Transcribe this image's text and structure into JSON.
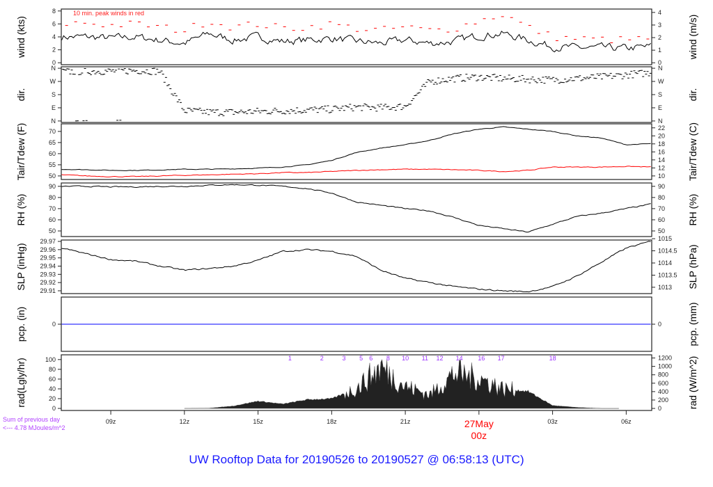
{
  "chart_data": {
    "type": "line",
    "title": "UW Rooftop Data for 20190526  to  20190527 @ 06:58:13  (UTC)",
    "x_range_hours": [
      0,
      24
    ],
    "x_hours_note": "hour 0 = 07z 26 May",
    "x_ticks": [
      {
        "h": 2,
        "label": "09z"
      },
      {
        "h": 5,
        "label": "12z"
      },
      {
        "h": 8,
        "label": "15z"
      },
      {
        "h": 11,
        "label": "18z"
      },
      {
        "h": 14,
        "label": "21z"
      },
      {
        "h": 17,
        "label": "00z"
      },
      {
        "h": 20,
        "label": "03z"
      },
      {
        "h": 23,
        "label": "06z"
      }
    ],
    "date_marker": {
      "h": 17,
      "day": "27May",
      "hour": "00z",
      "color": "#ff0000"
    },
    "panels": [
      {
        "id": "wind",
        "ylabel_left": "wind (kts)",
        "ylabel_right": "wind (m/s)",
        "ylim": [
          -0.3,
          8.3
        ],
        "left_ticks": [
          {
            "v": 0,
            "label": "0"
          },
          {
            "v": 2,
            "label": "2"
          },
          {
            "v": 4,
            "label": "4"
          },
          {
            "v": 6,
            "label": "6"
          },
          {
            "v": 8,
            "label": "8"
          }
        ],
        "right_ticks": [
          {
            "v": 0,
            "label": "0"
          },
          {
            "v": 1.944,
            "label": "1"
          },
          {
            "v": 3.888,
            "label": "2"
          },
          {
            "v": 5.832,
            "label": "3"
          },
          {
            "v": 7.776,
            "label": "4"
          }
        ],
        "annotation": "10 min. peak winds in red",
        "series": [
          {
            "name": "wind speed",
            "color": "#000000",
            "noise": 1.0,
            "values": [
              4,
              4,
              3.8,
              4,
              3.5,
              3,
              4.5,
              3.5,
              4,
              3.3,
              3.5,
              3.8,
              3.3,
              3,
              3.5,
              3,
              3.3,
              4.2,
              4.5,
              3.5,
              2.5,
              2.3,
              2.3,
              2.2,
              2.5
            ]
          },
          {
            "name": "10 min peak",
            "color": "#ff0000",
            "style": "dash",
            "values": [
              6,
              6.2,
              5.8,
              6,
              5.5,
              5,
              6.5,
              5.5,
              6,
              5.3,
              5.5,
              6,
              5.3,
              5,
              5.5,
              5,
              5.3,
              6.5,
              7.5,
              5.5,
              4,
              3.7,
              3.6,
              3.5,
              3.8
            ]
          }
        ]
      },
      {
        "id": "dir",
        "ylabel_left": "dir.",
        "ylabel_right": "dir.",
        "ylim": [
          -10,
          370
        ],
        "left_ticks": [
          {
            "v": 0,
            "label": "N"
          },
          {
            "v": 90,
            "label": "E"
          },
          {
            "v": 180,
            "label": "S"
          },
          {
            "v": 270,
            "label": "W"
          },
          {
            "v": 360,
            "label": "N"
          }
        ],
        "right_ticks": [
          {
            "v": 0,
            "label": "N"
          },
          {
            "v": 90,
            "label": "E"
          },
          {
            "v": 180,
            "label": "S"
          },
          {
            "v": 270,
            "label": "W"
          },
          {
            "v": 360,
            "label": "N"
          }
        ],
        "series": [
          {
            "name": "wind direction",
            "color": "#000000",
            "style": "points",
            "values": [
              335,
              340,
              340,
              345,
              340,
              70,
              60,
              60,
              65,
              70,
              75,
              80,
              95,
              90,
              100,
              270,
              290,
              300,
              290,
              285,
              280,
              290,
              300,
              315,
              330
            ]
          }
        ]
      },
      {
        "id": "temp",
        "ylabel_left": "Tair/Tdew (F)",
        "ylabel_right": "Tair/Tdew (C)",
        "ylim": [
          48.4,
          73.4
        ],
        "left_ticks": [
          {
            "v": 50,
            "label": "50"
          },
          {
            "v": 55,
            "label": "55"
          },
          {
            "v": 60,
            "label": "60"
          },
          {
            "v": 65,
            "label": "65"
          },
          {
            "v": 70,
            "label": "70"
          }
        ],
        "right_ticks": [
          {
            "v": 50,
            "label": "10"
          },
          {
            "v": 53.6,
            "label": "12"
          },
          {
            "v": 57.2,
            "label": "14"
          },
          {
            "v": 60.8,
            "label": "16"
          },
          {
            "v": 64.4,
            "label": "18"
          },
          {
            "v": 68,
            "label": "20"
          },
          {
            "v": 71.6,
            "label": "22"
          }
        ],
        "series": [
          {
            "name": "Tair",
            "color": "#000000",
            "noise": 0.25,
            "values": [
              53,
              52.8,
              52.5,
              52.5,
              52.7,
              53,
              53,
              53.2,
              53.5,
              54,
              55,
              57,
              60.5,
              62.5,
              64,
              66,
              69,
              71,
              72,
              71,
              70,
              68,
              67,
              64,
              64.5
            ]
          },
          {
            "name": "Tdew",
            "color": "#ff0000",
            "noise": 0.3,
            "values": [
              50.5,
              50,
              49.7,
              49.7,
              50,
              50.3,
              50.5,
              50.8,
              51,
              51.5,
              51.5,
              52,
              52.5,
              52.8,
              53,
              53,
              52.8,
              52.5,
              52,
              52.5,
              54,
              54,
              54,
              54.3,
              54
            ]
          }
        ]
      },
      {
        "id": "rh",
        "ylabel_left": "RH (%)",
        "ylabel_right": "RH (%)",
        "ylim": [
          45,
          93
        ],
        "left_ticks": [
          {
            "v": 50,
            "label": "50"
          },
          {
            "v": 60,
            "label": "60"
          },
          {
            "v": 70,
            "label": "70"
          },
          {
            "v": 80,
            "label": "80"
          },
          {
            "v": 90,
            "label": "90"
          }
        ],
        "right_ticks": [
          {
            "v": 50,
            "label": "50"
          },
          {
            "v": 60,
            "label": "60"
          },
          {
            "v": 70,
            "label": "70"
          },
          {
            "v": 80,
            "label": "80"
          },
          {
            "v": 90,
            "label": "90"
          }
        ],
        "series": [
          {
            "name": "RH",
            "color": "#000000",
            "noise": 0.8,
            "values": [
              90,
              90,
              89.5,
              89.5,
              90,
              90,
              91,
              91.5,
              91,
              90,
              88,
              84,
              76,
              73,
              70,
              68,
              62,
              55,
              52,
              49,
              56,
              63,
              66,
              70,
              74
            ]
          }
        ]
      },
      {
        "id": "slp",
        "ylabel_left": "SLP (inHg)",
        "ylabel_right": "SLP (hPa)",
        "ylim": [
          29.9066,
          29.9717
        ],
        "left_ticks": [
          {
            "v": 29.91,
            "label": "29.91"
          },
          {
            "v": 29.92,
            "label": "29.92"
          },
          {
            "v": 29.93,
            "label": "29.93"
          },
          {
            "v": 29.94,
            "label": "29.94"
          },
          {
            "v": 29.95,
            "label": "29.95"
          },
          {
            "v": 29.96,
            "label": "29.96"
          },
          {
            "v": 29.97,
            "label": "29.97"
          }
        ],
        "right_ticks": [
          {
            "v": 29.9143,
            "label": "1013"
          },
          {
            "v": 29.929,
            "label": "1013.5"
          },
          {
            "v": 29.9438,
            "label": "1014"
          },
          {
            "v": 29.9586,
            "label": "1014.5"
          },
          {
            "v": 29.9733,
            "label": "1015"
          }
        ],
        "series": [
          {
            "name": "SLP",
            "color": "#000000",
            "noise": 0.0015,
            "values": [
              29.962,
              29.955,
              29.948,
              29.946,
              29.94,
              29.935,
              29.937,
              29.94,
              29.947,
              29.958,
              29.96,
              29.958,
              29.952,
              29.935,
              29.925,
              29.92,
              29.915,
              29.912,
              29.91,
              29.909,
              29.915,
              29.928,
              29.945,
              29.962,
              29.97
            ]
          }
        ]
      },
      {
        "id": "pcp",
        "ylabel_left": "pcp. (in)",
        "ylabel_right": "pcp. (mm)",
        "ylim": [
          -1,
          1
        ],
        "left_ticks": [
          {
            "v": 0,
            "label": "0"
          }
        ],
        "right_ticks": [
          {
            "v": 0,
            "label": "0"
          }
        ],
        "series": [
          {
            "name": "precipitation",
            "color": "#0000ff",
            "values": [
              0,
              0,
              0,
              0,
              0,
              0,
              0,
              0,
              0,
              0,
              0,
              0,
              0,
              0,
              0,
              0,
              0,
              0,
              0,
              0,
              0,
              0,
              0,
              0,
              0
            ]
          }
        ]
      },
      {
        "id": "rad",
        "ylabel_left": "rad(Lgly/hr)",
        "ylabel_right": "rad (W/m^2)",
        "ylim": [
          -4.2,
          109.7
        ],
        "left_ticks": [
          {
            "v": 0,
            "label": "0"
          },
          {
            "v": 20,
            "label": "20"
          },
          {
            "v": 40,
            "label": "40"
          },
          {
            "v": 60,
            "label": "60"
          },
          {
            "v": 80,
            "label": "80"
          },
          {
            "v": 100,
            "label": "100"
          }
        ],
        "right_ticks": [
          {
            "v": 0,
            "label": "0"
          },
          {
            "v": 17.2,
            "label": "200"
          },
          {
            "v": 34.4,
            "label": "400"
          },
          {
            "v": 51.6,
            "label": "600"
          },
          {
            "v": 68.8,
            "label": "800"
          },
          {
            "v": 86,
            "label": "1000"
          },
          {
            "v": 103.2,
            "label": "1200"
          }
        ],
        "sum_text": [
          "Sum of previous day",
          "<--- 4.78 MJoules/m^2"
        ],
        "day_labels": [
          {
            "h": 9.3,
            "label": "1"
          },
          {
            "h": 10.6,
            "label": "2"
          },
          {
            "h": 11.5,
            "label": "3"
          },
          {
            "h": 12.2,
            "label": "5"
          },
          {
            "h": 12.6,
            "label": "6"
          },
          {
            "h": 13.3,
            "label": "8"
          },
          {
            "h": 14.0,
            "label": "10"
          },
          {
            "h": 14.8,
            "label": "11"
          },
          {
            "h": 15.4,
            "label": "12"
          },
          {
            "h": 16.2,
            "label": "14"
          },
          {
            "h": 17.1,
            "label": "16"
          },
          {
            "h": 17.9,
            "label": "17"
          },
          {
            "h": 20.0,
            "label": "18"
          }
        ],
        "series": [
          {
            "name": "solar radiation",
            "color": "#222222",
            "style": "area",
            "values": [
              0,
              0,
              0,
              0,
              0,
              0,
              0.5,
              5,
              15,
              9,
              18,
              20,
              40,
              85,
              45,
              28,
              72,
              62,
              40,
              35,
              6,
              2,
              0,
              0,
              0
            ]
          }
        ]
      }
    ]
  }
}
